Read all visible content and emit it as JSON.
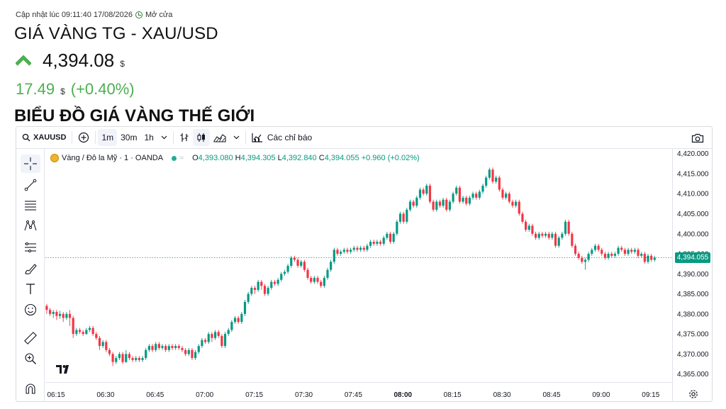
{
  "header": {
    "updated_label": "Cập nhật lúc 09:11:40 17/08/2026",
    "market_status": "Mở cửa",
    "title": "GIÁ VÀNG TG - XAU/USD",
    "price": "4,394.08",
    "price_unit": "$",
    "change": "17.49",
    "change_unit": "$",
    "change_pct": "(+0.40%)",
    "section_title": "BIỂU ĐỒ GIÁ VÀNG THẾ GIỚI"
  },
  "toolbar": {
    "symbol": "XAUUSD",
    "intervals": [
      "1m",
      "30m",
      "1h"
    ],
    "active_interval": "1m",
    "indicators_label": "Các chỉ báo"
  },
  "legend": {
    "name": "Vàng / Đô la Mỹ · 1 · OANDA",
    "o_label": "O",
    "o": "4,393.080",
    "h_label": "H",
    "h": "4,394.305",
    "l_label": "L",
    "l": "4,392.840",
    "c_label": "C",
    "c": "4,394.055",
    "change": "+0.960 (+0.02%)"
  },
  "colors": {
    "up": "#089981",
    "down": "#f23645",
    "accent_green": "#4caf50"
  },
  "left_tools": [
    "crosshair-icon",
    "trendline-icon",
    "fib-icon",
    "pattern-icon",
    "forecast-icon",
    "brush-icon",
    "text-icon",
    "emoji-icon",
    "ruler-icon",
    "zoom-in-icon",
    "magnet-icon"
  ],
  "chart_data": {
    "type": "candlestick",
    "current_price": 4394.055,
    "current_price_label": "4,394.055",
    "ylim": [
      4363,
      4421
    ],
    "y_ticks": [
      4365,
      4370,
      4375,
      4380,
      4385,
      4390,
      4395,
      4400,
      4405,
      4410,
      4415,
      4420
    ],
    "y_tick_labels": [
      "4,365.000",
      "4,370.000",
      "4,375.000",
      "4,380.000",
      "4,385.000",
      "4,390.000",
      "4,395.000",
      "4,400.000",
      "4,405.000",
      "4,410.000",
      "4,415.000",
      "4,420.000"
    ],
    "x_ticks": [
      "06:15",
      "06:30",
      "06:45",
      "07:00",
      "07:15",
      "07:30",
      "07:45",
      "08:00",
      "08:15",
      "08:30",
      "08:45",
      "09:00",
      "09:15"
    ],
    "x_start_label": "06:15",
    "minutes_per_tick": 15,
    "candles": [
      [
        4382,
        4381,
        4382.5,
        4380
      ],
      [
        4381,
        4380,
        4381.5,
        4379.5
      ],
      [
        4380,
        4380.5,
        4381,
        4379
      ],
      [
        4380.5,
        4379.5,
        4381,
        4378.5
      ],
      [
        4379.5,
        4380,
        4380.8,
        4378.8
      ],
      [
        4380,
        4379,
        4380.5,
        4378
      ],
      [
        4379,
        4380,
        4380.5,
        4378.5
      ],
      [
        4380,
        4379,
        4381,
        4377
      ],
      [
        4379,
        4375,
        4379.5,
        4374
      ],
      [
        4375,
        4376,
        4376.5,
        4374.5
      ],
      [
        4376,
        4375.5,
        4376.5,
        4375
      ],
      [
        4375.5,
        4375,
        4376,
        4374.5
      ],
      [
        4375,
        4376,
        4376.5,
        4374.8
      ],
      [
        4376,
        4376.5,
        4377,
        4375.5
      ],
      [
        4376.5,
        4375,
        4377,
        4374.5
      ],
      [
        4375,
        4374,
        4375.5,
        4373.5
      ],
      [
        4374,
        4372,
        4374.5,
        4371
      ],
      [
        4372,
        4373,
        4373.5,
        4371.5
      ],
      [
        4373,
        4371,
        4373.5,
        4370.5
      ],
      [
        4371,
        4370,
        4371.5,
        4369.5
      ],
      [
        4370,
        4368,
        4370.5,
        4367
      ],
      [
        4368,
        4369,
        4369.5,
        4367.5
      ],
      [
        4369,
        4370,
        4370.5,
        4368.5
      ],
      [
        4370,
        4368,
        4370.5,
        4367.5
      ],
      [
        4368,
        4370,
        4371,
        4367.8
      ],
      [
        4370,
        4369,
        4370.5,
        4368.5
      ],
      [
        4369,
        4368.5,
        4369.5,
        4368
      ],
      [
        4368.5,
        4369,
        4369.5,
        4368
      ],
      [
        4369,
        4368.5,
        4369.5,
        4368
      ],
      [
        4368.5,
        4369,
        4369.5,
        4368
      ],
      [
        4369,
        4371,
        4371.5,
        4368.5
      ],
      [
        4371,
        4372,
        4372.5,
        4370.5
      ],
      [
        4372,
        4371,
        4372.5,
        4370.5
      ],
      [
        4371,
        4372.5,
        4373,
        4370.5
      ],
      [
        4372.5,
        4371.5,
        4373,
        4371
      ],
      [
        4371.5,
        4372,
        4372.5,
        4371
      ],
      [
        4372,
        4371,
        4372.5,
        4370.5
      ],
      [
        4371,
        4372,
        4372.5,
        4370.5
      ],
      [
        4372,
        4371.5,
        4372.5,
        4371
      ],
      [
        4371.5,
        4372,
        4372.5,
        4371
      ],
      [
        4372,
        4371.5,
        4372.5,
        4371
      ],
      [
        4371.5,
        4371,
        4372,
        4370.5
      ],
      [
        4371,
        4370,
        4371.5,
        4369.5
      ],
      [
        4370,
        4371,
        4371.5,
        4369.5
      ],
      [
        4371,
        4369,
        4371.5,
        4368.5
      ],
      [
        4369,
        4370.5,
        4371,
        4368.5
      ],
      [
        4370.5,
        4372,
        4372.5,
        4370
      ],
      [
        4372,
        4373.5,
        4374,
        4371.5
      ],
      [
        4373.5,
        4373,
        4374,
        4372.5
      ],
      [
        4373,
        4375,
        4375.5,
        4372.5
      ],
      [
        4375,
        4374,
        4375.5,
        4373
      ],
      [
        4374,
        4375.5,
        4376,
        4373.5
      ],
      [
        4375.5,
        4374.5,
        4376,
        4374
      ],
      [
        4374.5,
        4372,
        4375,
        4371.5
      ],
      [
        4372,
        4375,
        4375.5,
        4371.5
      ],
      [
        4375,
        4376,
        4376.5,
        4374.5
      ],
      [
        4376,
        4378,
        4378.5,
        4375.5
      ],
      [
        4378,
        4379,
        4379.5,
        4377.5
      ],
      [
        4379,
        4378,
        4379.5,
        4377.5
      ],
      [
        4378,
        4380,
        4380.5,
        4377.5
      ],
      [
        4380,
        4383,
        4383.5,
        4379.5
      ],
      [
        4383,
        4385,
        4385.5,
        4382.5
      ],
      [
        4385,
        4386.5,
        4387,
        4384.5
      ],
      [
        4386.5,
        4386,
        4387,
        4385
      ],
      [
        4386,
        4388,
        4388.5,
        4385.5
      ],
      [
        4388,
        4387,
        4388.5,
        4386
      ],
      [
        4387,
        4385,
        4387.5,
        4384.5
      ],
      [
        4385,
        4386.5,
        4387,
        4384.5
      ],
      [
        4386.5,
        4388,
        4388.5,
        4386
      ],
      [
        4388,
        4387.5,
        4388.5,
        4387
      ],
      [
        4387.5,
        4388.5,
        4389,
        4387
      ],
      [
        4388.5,
        4390,
        4390.5,
        4388
      ],
      [
        4390,
        4390.5,
        4391,
        4389.5
      ],
      [
        4390.5,
        4392,
        4392.5,
        4390
      ],
      [
        4392,
        4394,
        4394.5,
        4391.5
      ],
      [
        4394,
        4393.5,
        4394.5,
        4393
      ],
      [
        4393.5,
        4392,
        4394,
        4391.5
      ],
      [
        4392,
        4393,
        4393.5,
        4391.5
      ],
      [
        4393,
        4391,
        4393.5,
        4390.5
      ],
      [
        4391,
        4389,
        4391.5,
        4388.5
      ],
      [
        4389,
        4388,
        4389.5,
        4387.5
      ],
      [
        4388,
        4389,
        4389.5,
        4387.5
      ],
      [
        4389,
        4388,
        4389.5,
        4387.5
      ],
      [
        4388,
        4387,
        4388.5,
        4386.5
      ],
      [
        4387,
        4389,
        4389.5,
        4386.5
      ],
      [
        4389,
        4391,
        4391.5,
        4388.5
      ],
      [
        4391,
        4393,
        4393.5,
        4390.5
      ],
      [
        4393,
        4396,
        4396.5,
        4392.5
      ],
      [
        4396,
        4395,
        4396.5,
        4394.5
      ],
      [
        4395,
        4395.5,
        4396,
        4394.5
      ],
      [
        4395.5,
        4396,
        4396.5,
        4395
      ],
      [
        4396,
        4395.5,
        4396.5,
        4395
      ],
      [
        4395.5,
        4396,
        4396.5,
        4395
      ],
      [
        4396,
        4396.5,
        4397,
        4395.5
      ],
      [
        4396.5,
        4396,
        4397,
        4395.5
      ],
      [
        4396,
        4396.5,
        4397,
        4395.5
      ],
      [
        4396.5,
        4396,
        4397,
        4395.5
      ],
      [
        4396,
        4397,
        4397.5,
        4395.5
      ],
      [
        4397,
        4398,
        4398.5,
        4396.5
      ],
      [
        4398,
        4397.5,
        4398.5,
        4397
      ],
      [
        4397.5,
        4398,
        4398.5,
        4397
      ],
      [
        4398,
        4397.5,
        4398.5,
        4397
      ],
      [
        4397.5,
        4399,
        4399.5,
        4397
      ],
      [
        4399,
        4400,
        4400.5,
        4398.5
      ],
      [
        4400,
        4398,
        4400.5,
        4397.5
      ],
      [
        4398,
        4400,
        4400.5,
        4397.5
      ],
      [
        4400,
        4403,
        4403.5,
        4399.5
      ],
      [
        4403,
        4405,
        4405.5,
        4402.5
      ],
      [
        4405,
        4403,
        4405.5,
        4402.5
      ],
      [
        4403,
        4406,
        4406.5,
        4402.5
      ],
      [
        4406,
        4408,
        4408.5,
        4405.5
      ],
      [
        4408,
        4407,
        4408.5,
        4406.5
      ],
      [
        4407,
        4409,
        4409.5,
        4406.5
      ],
      [
        4409,
        4411,
        4411.5,
        4408.5
      ],
      [
        4411,
        4410,
        4411.5,
        4409.5
      ],
      [
        4410,
        4412,
        4412.5,
        4409.5
      ],
      [
        4412,
        4408,
        4412.5,
        4407.5
      ],
      [
        4408,
        4406,
        4408.5,
        4405.5
      ],
      [
        4406,
        4408,
        4408.5,
        4405.5
      ],
      [
        4408,
        4407,
        4408.5,
        4406.5
      ],
      [
        4407,
        4408.5,
        4409,
        4406.5
      ],
      [
        4408.5,
        4406,
        4409,
        4405.5
      ],
      [
        4406,
        4408,
        4408.5,
        4405.5
      ],
      [
        4408,
        4410,
        4410.5,
        4407.5
      ],
      [
        4410,
        4411.5,
        4412,
        4409.5
      ],
      [
        4411.5,
        4408,
        4412,
        4407.5
      ],
      [
        4408,
        4409,
        4409.5,
        4407.5
      ],
      [
        4409,
        4407.5,
        4409.5,
        4407
      ],
      [
        4407.5,
        4409,
        4409.5,
        4407
      ],
      [
        4409,
        4410,
        4410.5,
        4408.5
      ],
      [
        4410,
        4409,
        4410.5,
        4408.5
      ],
      [
        4409,
        4410.5,
        4411,
        4408.5
      ],
      [
        4410.5,
        4412,
        4412.5,
        4410
      ],
      [
        4412,
        4414,
        4414.5,
        4411.5
      ],
      [
        4414,
        4416,
        4416.5,
        4413.5
      ],
      [
        4416,
        4413,
        4416.5,
        4412.5
      ],
      [
        4413,
        4414,
        4414.5,
        4412.5
      ],
      [
        4414,
        4411,
        4414.5,
        4410.5
      ],
      [
        4411,
        4409,
        4411.5,
        4408.5
      ],
      [
        4409,
        4410,
        4410.5,
        4408.5
      ],
      [
        4410,
        4408,
        4410.5,
        4407.5
      ],
      [
        4408,
        4407,
        4408.5,
        4406.5
      ],
      [
        4407,
        4408,
        4408.5,
        4406.5
      ],
      [
        4408,
        4405,
        4408.5,
        4404.5
      ],
      [
        4405,
        4403,
        4405.5,
        4402.5
      ],
      [
        4403,
        4401,
        4403.5,
        4400.5
      ],
      [
        4401,
        4402,
        4402.5,
        4400.5
      ],
      [
        4402,
        4400,
        4402.5,
        4399.5
      ],
      [
        4400,
        4399,
        4400.5,
        4398.5
      ],
      [
        4399,
        4400,
        4400.5,
        4398.5
      ],
      [
        4400,
        4399.5,
        4400.5,
        4399
      ],
      [
        4399.5,
        4400,
        4400.5,
        4399
      ],
      [
        4400,
        4399,
        4400.5,
        4398.5
      ],
      [
        4399,
        4400,
        4400.5,
        4398.5
      ],
      [
        4400,
        4397,
        4400.5,
        4396.5
      ],
      [
        4397,
        4399,
        4399.5,
        4396.5
      ],
      [
        4399,
        4400,
        4400.5,
        4398.5
      ],
      [
        4400,
        4403,
        4403.5,
        4399.5
      ],
      [
        4403,
        4400,
        4403.5,
        4399.5
      ],
      [
        4400,
        4397,
        4400.5,
        4396.5
      ],
      [
        4397,
        4395,
        4397.5,
        4394.5
      ],
      [
        4395,
        4394,
        4395.5,
        4393.5
      ],
      [
        4394,
        4393,
        4394.5,
        4392.5
      ],
      [
        4393,
        4393.5,
        4394,
        4391
      ],
      [
        4393.5,
        4395,
        4395.5,
        4393
      ],
      [
        4395,
        4396,
        4396.5,
        4394.5
      ],
      [
        4396,
        4397,
        4397.5,
        4395.5
      ],
      [
        4397,
        4396,
        4397.5,
        4395.5
      ],
      [
        4396,
        4395,
        4396.5,
        4394.5
      ],
      [
        4395,
        4394,
        4395.5,
        4393.5
      ],
      [
        4394,
        4395,
        4395.5,
        4393.5
      ],
      [
        4395,
        4394.5,
        4395.5,
        4394
      ],
      [
        4394.5,
        4395,
        4395.5,
        4394
      ],
      [
        4395,
        4396.5,
        4397,
        4394.5
      ],
      [
        4396.5,
        4396,
        4397,
        4395.5
      ],
      [
        4396,
        4395,
        4396.5,
        4394.5
      ],
      [
        4395,
        4396,
        4396.5,
        4394.5
      ],
      [
        4396,
        4395.5,
        4396.5,
        4395
      ],
      [
        4395.5,
        4396,
        4396.5,
        4395
      ],
      [
        4396,
        4394.5,
        4396.5,
        4394
      ],
      [
        4394.5,
        4395,
        4395.5,
        4394
      ],
      [
        4395,
        4393,
        4395.5,
        4392.5
      ],
      [
        4393,
        4394.5,
        4395,
        4392.5
      ],
      [
        4394.5,
        4393.5,
        4395,
        4393
      ],
      [
        4393.5,
        4394,
        4394.5,
        4393
      ]
    ]
  }
}
